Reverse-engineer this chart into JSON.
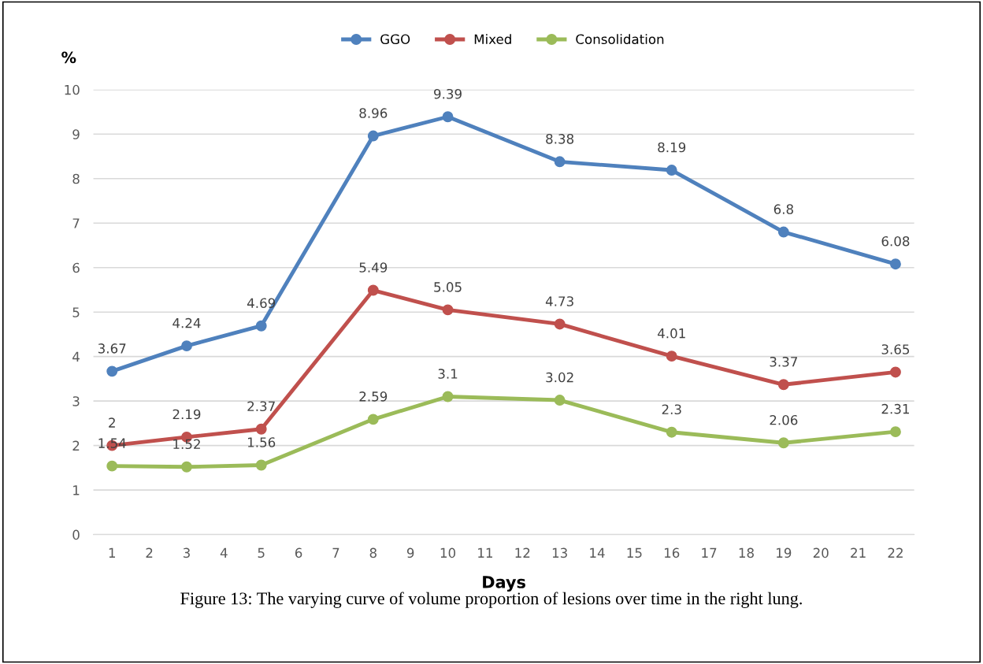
{
  "chart_data": {
    "type": "line",
    "ylabel": "%",
    "xlabel": "Days",
    "annotations": [
      "Figure 13: The varying curve of volume proportion of lesions over time in the right lung."
    ],
    "x": [
      1,
      3,
      5,
      8,
      10,
      13,
      16,
      19,
      22
    ],
    "series": [
      {
        "name": "GGO",
        "color": "#4f81bd",
        "values": [
          3.67,
          4.24,
          4.69,
          8.96,
          9.39,
          8.38,
          8.19,
          6.8,
          6.08
        ]
      },
      {
        "name": "Mixed",
        "color": "#c0504d",
        "values": [
          2,
          2.19,
          2.37,
          5.49,
          5.05,
          4.73,
          4.01,
          3.37,
          3.65
        ]
      },
      {
        "name": "Consolidation",
        "color": "#9bbb59",
        "values": [
          1.54,
          1.52,
          1.56,
          2.59,
          3.1,
          3.02,
          2.3,
          2.06,
          2.31
        ]
      }
    ],
    "xlim": [
      0.5,
      22.5
    ],
    "xticks": [
      1,
      2,
      3,
      4,
      5,
      6,
      7,
      8,
      9,
      10,
      11,
      12,
      13,
      14,
      15,
      16,
      17,
      18,
      19,
      20,
      21,
      22
    ],
    "ylim": [
      0,
      10
    ],
    "yticks": [
      0,
      1,
      2,
      3,
      4,
      5,
      6,
      7,
      8,
      9,
      10
    ],
    "grid": "y",
    "legend": "top",
    "marker": "circle",
    "line_style": "solid",
    "data_labels": true
  }
}
